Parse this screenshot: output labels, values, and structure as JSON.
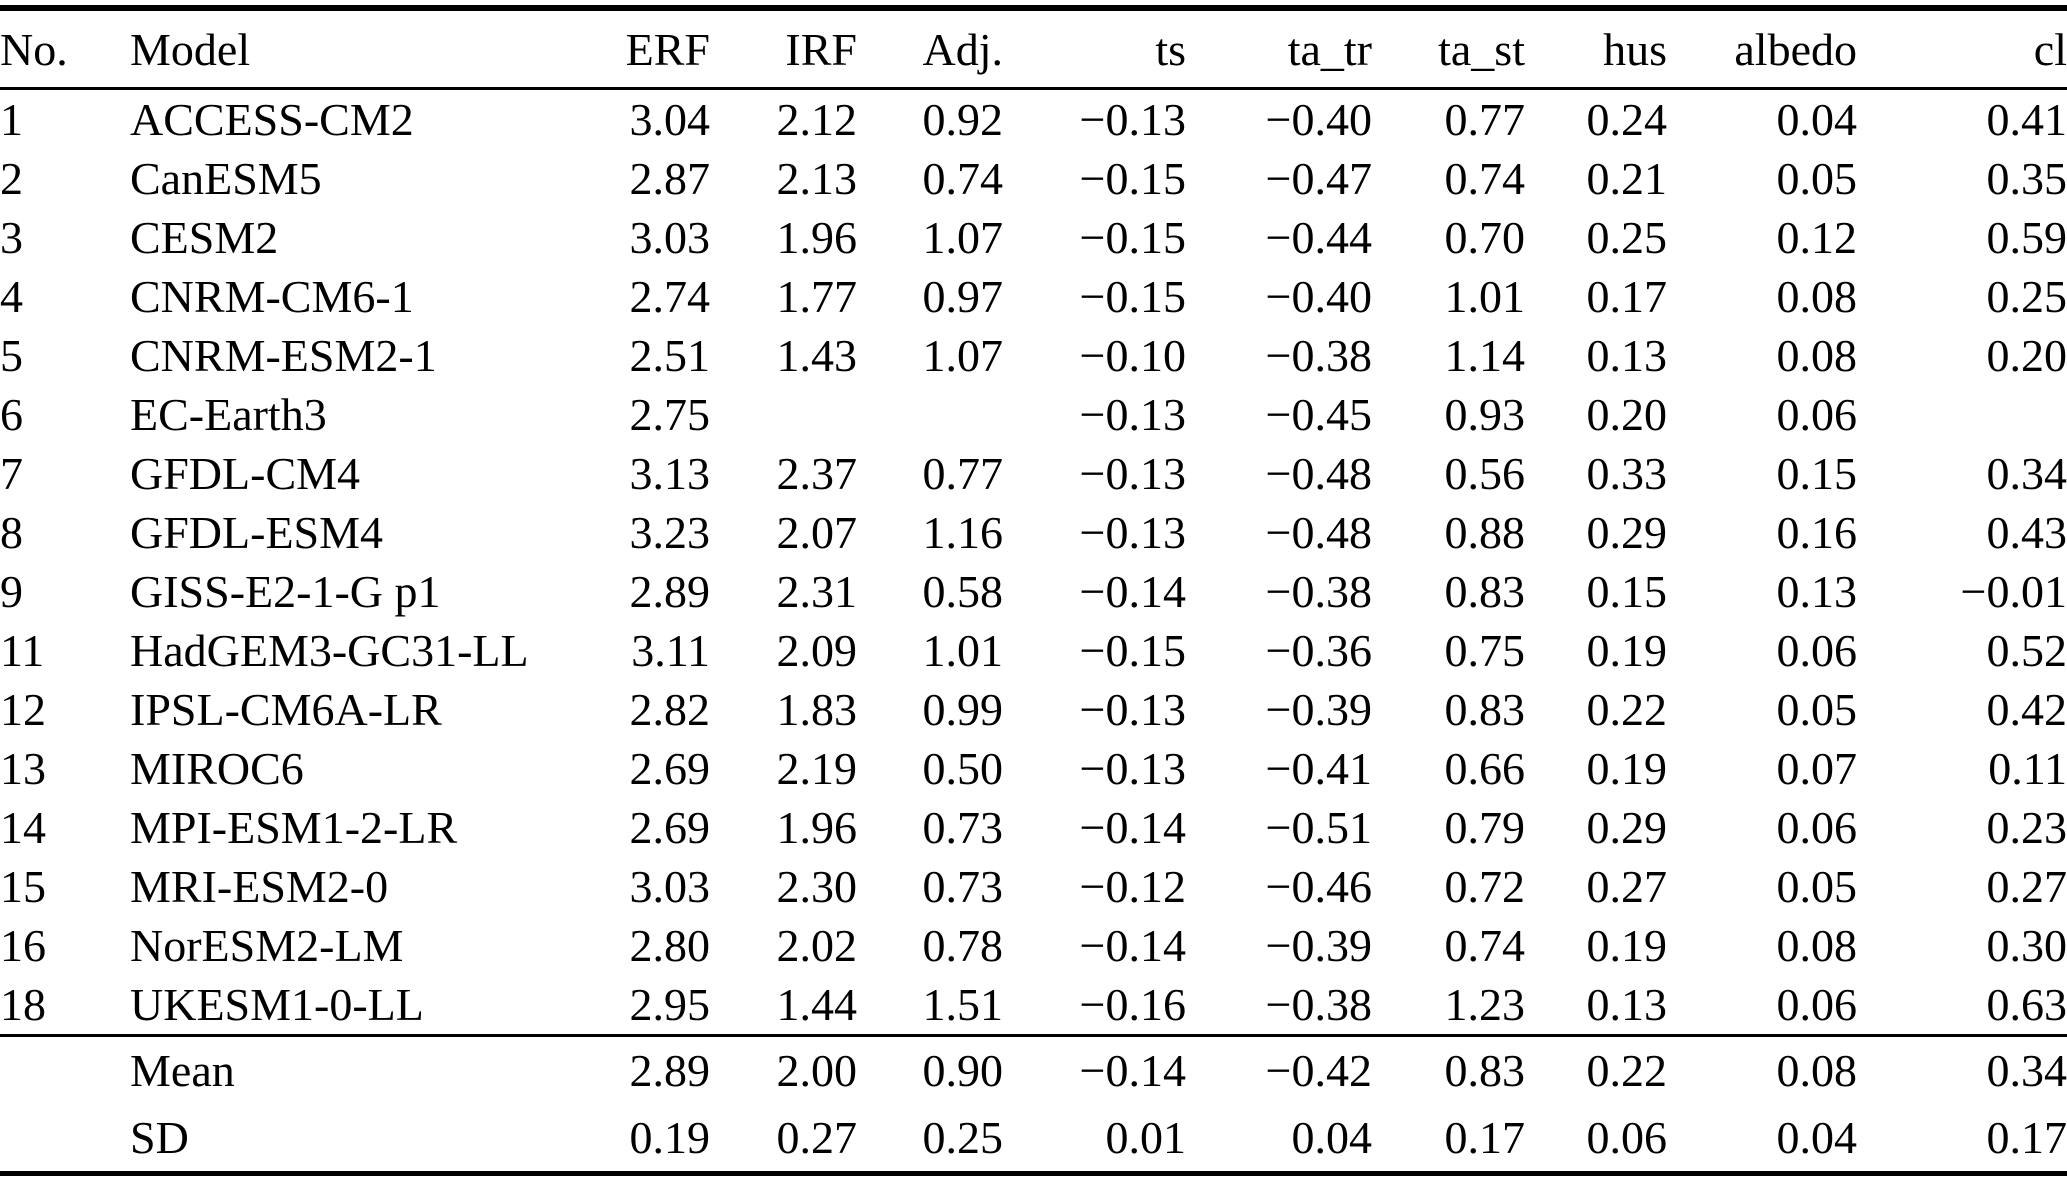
{
  "colors": {
    "background": "#ffffff",
    "text": "#000000",
    "rule": "#000000"
  },
  "table": {
    "columns": [
      {
        "key": "no",
        "label": "No."
      },
      {
        "key": "model",
        "label": "Model"
      },
      {
        "key": "erf",
        "label": "ERF"
      },
      {
        "key": "irf",
        "label": "IRF"
      },
      {
        "key": "adj",
        "label": "Adj."
      },
      {
        "key": "ts",
        "label": "ts"
      },
      {
        "key": "ta_tr",
        "label": "ta_tr"
      },
      {
        "key": "ta_st",
        "label": "ta_st"
      },
      {
        "key": "hus",
        "label": "hus"
      },
      {
        "key": "albedo",
        "label": "albedo"
      },
      {
        "key": "cl",
        "label": "cl"
      }
    ],
    "rows": [
      {
        "no": "1",
        "model": "ACCESS-CM2",
        "erf": "3.04",
        "irf": "2.12",
        "adj": "0.92",
        "ts": "−0.13",
        "ta_tr": "−0.40",
        "ta_st": "0.77",
        "hus": "0.24",
        "albedo": "0.04",
        "cl": "0.41"
      },
      {
        "no": "2",
        "model": "CanESM5",
        "erf": "2.87",
        "irf": "2.13",
        "adj": "0.74",
        "ts": "−0.15",
        "ta_tr": "−0.47",
        "ta_st": "0.74",
        "hus": "0.21",
        "albedo": "0.05",
        "cl": "0.35"
      },
      {
        "no": "3",
        "model": "CESM2",
        "erf": "3.03",
        "irf": "1.96",
        "adj": "1.07",
        "ts": "−0.15",
        "ta_tr": "−0.44",
        "ta_st": "0.70",
        "hus": "0.25",
        "albedo": "0.12",
        "cl": "0.59"
      },
      {
        "no": "4",
        "model": "CNRM-CM6-1",
        "erf": "2.74",
        "irf": "1.77",
        "adj": "0.97",
        "ts": "−0.15",
        "ta_tr": "−0.40",
        "ta_st": "1.01",
        "hus": "0.17",
        "albedo": "0.08",
        "cl": "0.25"
      },
      {
        "no": "5",
        "model": "CNRM-ESM2-1",
        "erf": "2.51",
        "irf": "1.43",
        "adj": "1.07",
        "ts": "−0.10",
        "ta_tr": "−0.38",
        "ta_st": "1.14",
        "hus": "0.13",
        "albedo": "0.08",
        "cl": "0.20"
      },
      {
        "no": "6",
        "model": "EC-Earth3",
        "erf": "2.75",
        "irf": "",
        "adj": "",
        "ts": "−0.13",
        "ta_tr": "−0.45",
        "ta_st": "0.93",
        "hus": "0.20",
        "albedo": "0.06",
        "cl": ""
      },
      {
        "no": "7",
        "model": "GFDL-CM4",
        "erf": "3.13",
        "irf": "2.37",
        "adj": "0.77",
        "ts": "−0.13",
        "ta_tr": "−0.48",
        "ta_st": "0.56",
        "hus": "0.33",
        "albedo": "0.15",
        "cl": "0.34"
      },
      {
        "no": "8",
        "model": "GFDL-ESM4",
        "erf": "3.23",
        "irf": "2.07",
        "adj": "1.16",
        "ts": "−0.13",
        "ta_tr": "−0.48",
        "ta_st": "0.88",
        "hus": "0.29",
        "albedo": "0.16",
        "cl": "0.43"
      },
      {
        "no": "9",
        "model": "GISS-E2-1-G p1",
        "erf": "2.89",
        "irf": "2.31",
        "adj": "0.58",
        "ts": "−0.14",
        "ta_tr": "−0.38",
        "ta_st": "0.83",
        "hus": "0.15",
        "albedo": "0.13",
        "cl": "−0.01"
      },
      {
        "no": "11",
        "model": "HadGEM3-GC31-LL",
        "erf": "3.11",
        "irf": "2.09",
        "adj": "1.01",
        "ts": "−0.15",
        "ta_tr": "−0.36",
        "ta_st": "0.75",
        "hus": "0.19",
        "albedo": "0.06",
        "cl": "0.52"
      },
      {
        "no": "12",
        "model": "IPSL-CM6A-LR",
        "erf": "2.82",
        "irf": "1.83",
        "adj": "0.99",
        "ts": "−0.13",
        "ta_tr": "−0.39",
        "ta_st": "0.83",
        "hus": "0.22",
        "albedo": "0.05",
        "cl": "0.42"
      },
      {
        "no": "13",
        "model": "MIROC6",
        "erf": "2.69",
        "irf": "2.19",
        "adj": "0.50",
        "ts": "−0.13",
        "ta_tr": "−0.41",
        "ta_st": "0.66",
        "hus": "0.19",
        "albedo": "0.07",
        "cl": "0.11"
      },
      {
        "no": "14",
        "model": "MPI-ESM1-2-LR",
        "erf": "2.69",
        "irf": "1.96",
        "adj": "0.73",
        "ts": "−0.14",
        "ta_tr": "−0.51",
        "ta_st": "0.79",
        "hus": "0.29",
        "albedo": "0.06",
        "cl": "0.23"
      },
      {
        "no": "15",
        "model": "MRI-ESM2-0",
        "erf": "3.03",
        "irf": "2.30",
        "adj": "0.73",
        "ts": "−0.12",
        "ta_tr": "−0.46",
        "ta_st": "0.72",
        "hus": "0.27",
        "albedo": "0.05",
        "cl": "0.27"
      },
      {
        "no": "16",
        "model": "NorESM2-LM",
        "erf": "2.80",
        "irf": "2.02",
        "adj": "0.78",
        "ts": "−0.14",
        "ta_tr": "−0.39",
        "ta_st": "0.74",
        "hus": "0.19",
        "albedo": "0.08",
        "cl": "0.30"
      },
      {
        "no": "18",
        "model": "UKESM1-0-LL",
        "erf": "2.95",
        "irf": "1.44",
        "adj": "1.51",
        "ts": "−0.16",
        "ta_tr": "−0.38",
        "ta_st": "1.23",
        "hus": "0.13",
        "albedo": "0.06",
        "cl": "0.63"
      }
    ],
    "summary": [
      {
        "no": "",
        "model": "Mean",
        "erf": "2.89",
        "irf": "2.00",
        "adj": "0.90",
        "ts": "−0.14",
        "ta_tr": "−0.42",
        "ta_st": "0.83",
        "hus": "0.22",
        "albedo": "0.08",
        "cl": "0.34"
      },
      {
        "no": "",
        "model": "SD",
        "erf": "0.19",
        "irf": "0.27",
        "adj": "0.25",
        "ts": "0.01",
        "ta_tr": "0.04",
        "ta_st": "0.17",
        "hus": "0.06",
        "albedo": "0.04",
        "cl": "0.17"
      }
    ]
  }
}
